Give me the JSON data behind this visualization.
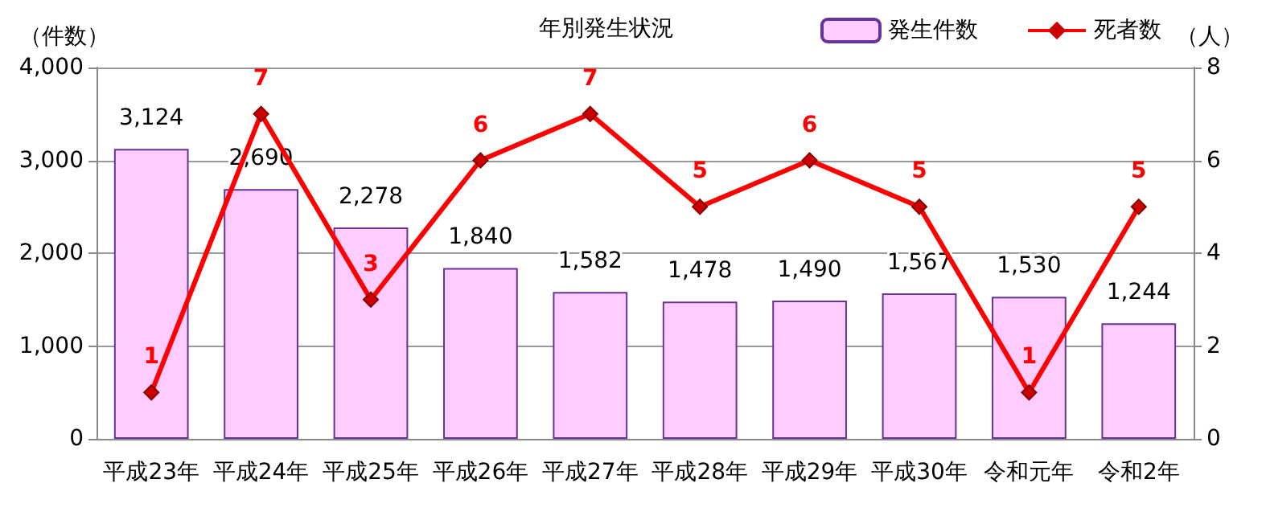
{
  "chart_data": {
    "type": "bar",
    "title": "年別発生状況",
    "ylabel": "（件数）",
    "y2label": "（人）",
    "categories": [
      "平成23年",
      "平成24年",
      "平成25年",
      "平成26年",
      "平成27年",
      "平成28年",
      "平成29年",
      "平成30年",
      "令和元年",
      "令和2年"
    ],
    "series": [
      {
        "name": "発生件数",
        "color": "#ffccff",
        "values": [
          3124,
          2690,
          2278,
          1840,
          1582,
          1478,
          1490,
          1567,
          1530,
          1244
        ],
        "value_labels": [
          "3,124",
          "2,690",
          "2,278",
          "1,840",
          "1,582",
          "1,478",
          "1,490",
          "1,567",
          "1,530",
          "1,244"
        ]
      },
      {
        "name": "死者数",
        "type": "line",
        "axis": "y2",
        "color": "#ff0000",
        "marker": "diamond",
        "values": [
          1,
          7,
          3,
          6,
          7,
          5,
          6,
          5,
          1,
          5
        ],
        "value_labels": [
          "1",
          "7",
          "3",
          "6",
          "7",
          "5",
          "6",
          "5",
          "1",
          "5"
        ]
      }
    ],
    "ylim": [
      0,
      4000
    ],
    "yticks": [
      {
        "value": 0,
        "label": "0"
      },
      {
        "value": 1000,
        "label": "1,000"
      },
      {
        "value": 2000,
        "label": "2,000"
      },
      {
        "value": 3000,
        "label": "3,000"
      },
      {
        "value": 4000,
        "label": "4,000"
      }
    ],
    "y2lim": [
      0,
      8
    ],
    "y2ticks": [
      0,
      2,
      4,
      6,
      8
    ],
    "grid": "y",
    "legend": "top right"
  }
}
